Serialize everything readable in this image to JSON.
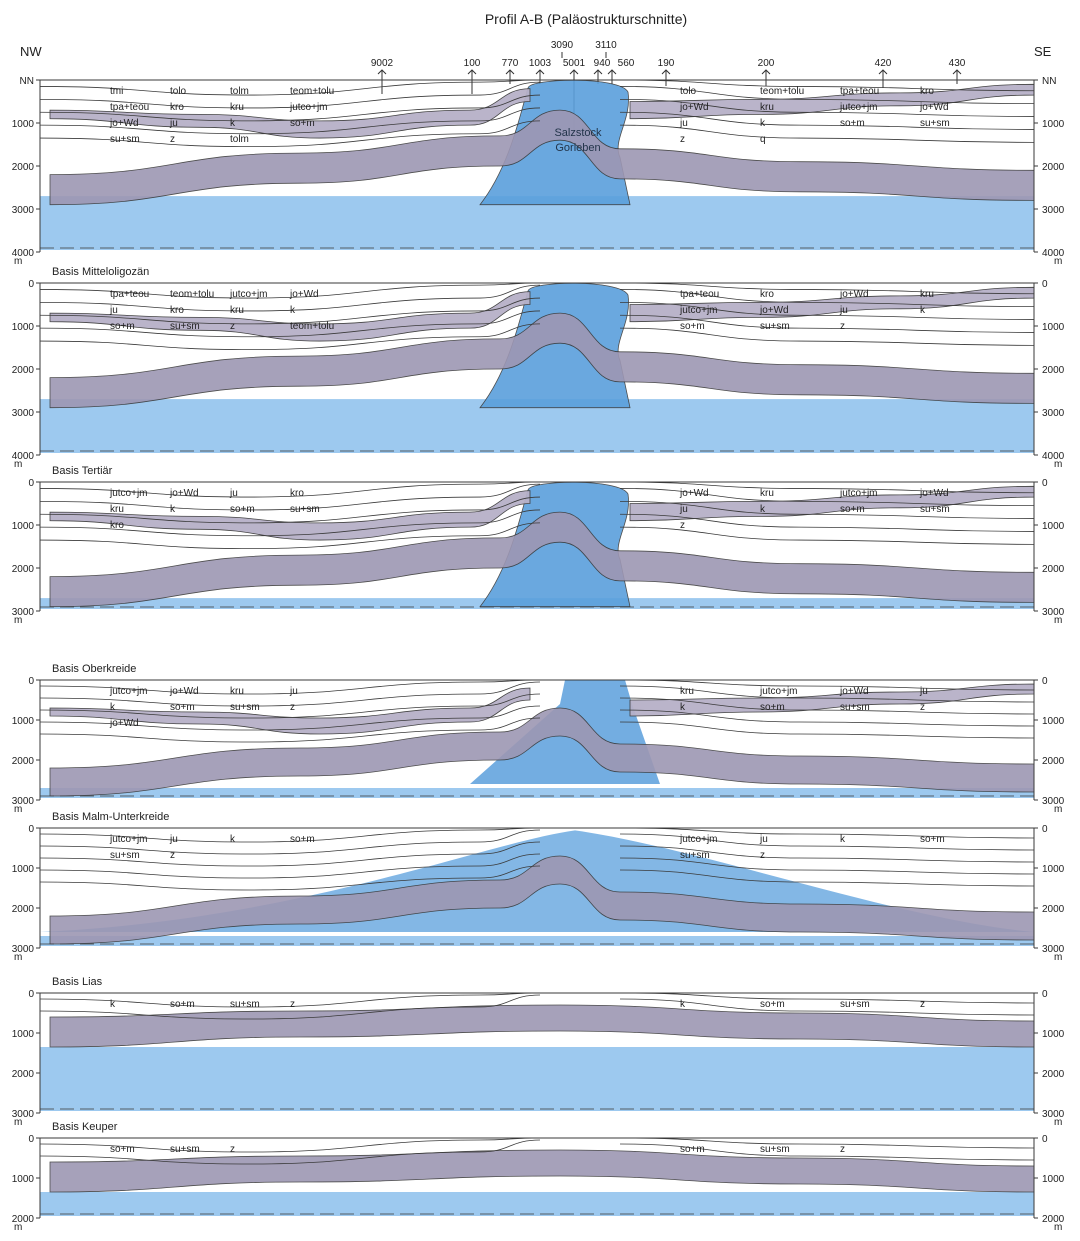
{
  "title": "Profil A-B (Paläostrukturschnitte)",
  "directions": {
    "left": "NW",
    "right": "SE"
  },
  "nn_label": "NN",
  "depth_unit": "m",
  "colors": {
    "salt": "#5a9fdc",
    "salt_light": "#8cc0ec",
    "purple": "#b7b1c8",
    "purple_dark": "#9d97b3",
    "line": "#3a3a3a"
  },
  "wells": [
    "9002",
    "100",
    "770",
    "1003",
    "3090",
    "5001",
    "3110",
    "940",
    "560",
    "190",
    "200",
    "420",
    "430"
  ],
  "salt_stock_label": [
    "Salzstock",
    "Gorleben"
  ],
  "panels": [
    {
      "title": "",
      "left_ticks": [
        "NN",
        "1000",
        "2000",
        "3000",
        "4000"
      ],
      "right_ticks": [
        "NN",
        "1000",
        "2000",
        "3000",
        "4000"
      ],
      "labels": [
        "tmi",
        "tolo",
        "tolm",
        "teom+tolu",
        "tpa+teou",
        "kro",
        "kru",
        "jutco+jm",
        "jo+Wd",
        "ju",
        "k",
        "so+m",
        "su+sm",
        "z",
        "tolm",
        "tolo",
        "teom+tolu",
        "tpa+teou",
        "kro",
        "jo+Wd",
        "kru",
        "jutco+jm",
        "jo+Wd",
        "ju",
        "k",
        "so+m",
        "su+sm",
        "z",
        "q"
      ]
    },
    {
      "title": "Basis Mitteloligozän",
      "left_ticks": [
        "0",
        "1000",
        "2000",
        "3000",
        "4000"
      ],
      "right_ticks": [
        "0",
        "1000",
        "2000",
        "3000",
        "4000"
      ],
      "labels": [
        "tpa+teou",
        "teom+tolu",
        "jutco+jm",
        "jo+Wd",
        "ju",
        "kro",
        "kru",
        "k",
        "so+m",
        "su+sm",
        "z",
        "teom+tolu",
        "tpa+teou",
        "kro",
        "jo+Wd",
        "kru",
        "jutco+jm",
        "jo+Wd",
        "ju",
        "k",
        "so+m",
        "su+sm",
        "z"
      ]
    },
    {
      "title": "Basis Tertiär",
      "left_ticks": [
        "0",
        "1000",
        "2000",
        "3000"
      ],
      "right_ticks": [
        "0",
        "1000",
        "2000",
        "3000"
      ],
      "labels": [
        "jutco+jm",
        "jo+Wd",
        "ju",
        "kro",
        "kru",
        "k",
        "so+m",
        "su+sm",
        "kro",
        "jo+Wd",
        "kru",
        "jutco+jm",
        "jo+Wd",
        "ju",
        "k",
        "so+m",
        "su+sm",
        "z"
      ]
    },
    {
      "title": "Basis Oberkreide",
      "left_ticks": [
        "0",
        "1000",
        "2000",
        "3000"
      ],
      "right_ticks": [
        "0",
        "1000",
        "2000",
        "3000"
      ],
      "labels": [
        "jutco+jm",
        "jo+Wd",
        "kru",
        "ju",
        "k",
        "so+m",
        "su+sm",
        "z",
        "jo+Wd",
        "kru",
        "jutco+jm",
        "jo+Wd",
        "ju",
        "k",
        "so+m",
        "su+sm",
        "z"
      ]
    },
    {
      "title": "Basis Malm-Unterkreide",
      "left_ticks": [
        "0",
        "1000",
        "2000",
        "3000"
      ],
      "right_ticks": [
        "0",
        "1000",
        "2000",
        "3000"
      ],
      "labels": [
        "jutco+jm",
        "ju",
        "k",
        "so+m",
        "su+sm",
        "z",
        "jutco+jm",
        "ju",
        "k",
        "so+m",
        "su+sm",
        "z"
      ]
    },
    {
      "title": "Basis Lias",
      "left_ticks": [
        "0",
        "1000",
        "2000",
        "3000"
      ],
      "right_ticks": [
        "0",
        "1000",
        "2000",
        "3000"
      ],
      "labels": [
        "k",
        "so+m",
        "su+sm",
        "z",
        "k",
        "so+m",
        "su+sm",
        "z"
      ]
    },
    {
      "title": "Basis Keuper",
      "left_ticks": [
        "0",
        "1000",
        "2000"
      ],
      "right_ticks": [
        "0",
        "1000",
        "2000"
      ],
      "labels": [
        "so+m",
        "su+sm",
        "z",
        "so+m",
        "su+sm",
        "z"
      ]
    }
  ]
}
